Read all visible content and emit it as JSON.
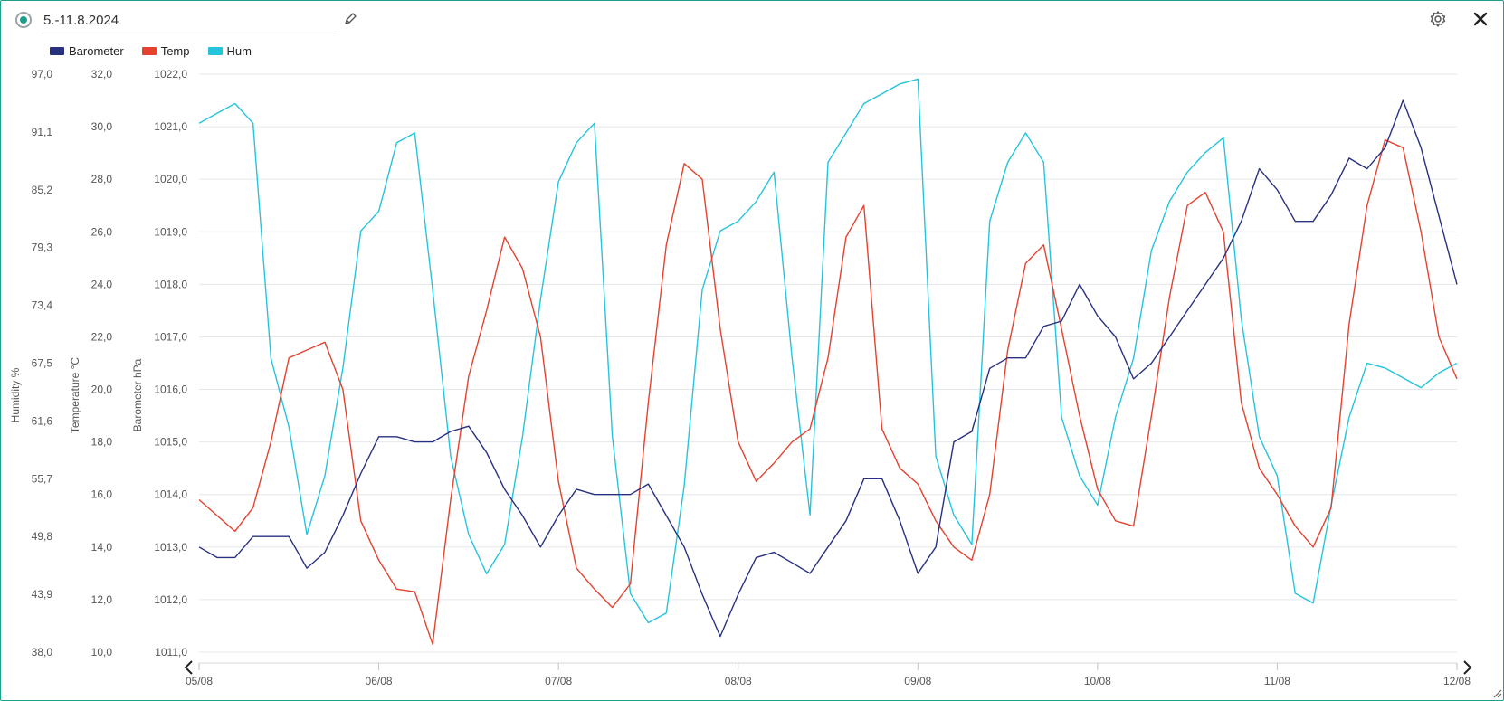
{
  "header": {
    "title": "5.-11.8.2024",
    "accent": "#1f9e8a"
  },
  "icons": {
    "status": "radio-selected-icon",
    "edit": "pencil-icon",
    "settings": "gear-icon",
    "close": "close-icon",
    "prev": "chevron-left-icon",
    "next": "chevron-right-icon",
    "resize": "resize-handle-icon"
  },
  "chart_data": {
    "type": "line",
    "title": "",
    "legend": "top-left",
    "grid": true,
    "x": {
      "labels": [
        "05/08",
        "06/08",
        "07/08",
        "08/08",
        "09/08",
        "10/08",
        "11/08",
        "12/08"
      ],
      "range": [
        "2024-08-05",
        "2024-08-12"
      ]
    },
    "axes": [
      {
        "id": "hum",
        "label": "Humidity %",
        "range": [
          38.0,
          97.0
        ],
        "ticks": [
          "97,0",
          "91,1",
          "85,2",
          "79,3",
          "73,4",
          "67,5",
          "61,6",
          "55,7",
          "49,8",
          "43,9",
          "38,0"
        ]
      },
      {
        "id": "temp",
        "label": "Temperature °C",
        "range": [
          10.0,
          32.0
        ],
        "ticks": [
          "32,0",
          "30,0",
          "28,0",
          "26,0",
          "24,0",
          "22,0",
          "20,0",
          "18,0",
          "16,0",
          "14,0",
          "12,0",
          "10,0"
        ]
      },
      {
        "id": "baro",
        "label": "Barometer hPa",
        "range": [
          1011.0,
          1022.0
        ],
        "ticks": [
          "1022,0",
          "1021,0",
          "1020,0",
          "1019,0",
          "1018,0",
          "1017,0",
          "1016,0",
          "1015,0",
          "1014,0",
          "1013,0",
          "1012,0",
          "1011,0"
        ]
      }
    ],
    "series": [
      {
        "name": "Barometer",
        "axis": "baro",
        "color": "#283180",
        "x": [
          0,
          0.1,
          0.2,
          0.3,
          0.4,
          0.5,
          0.6,
          0.7,
          0.8,
          0.9,
          1.0,
          1.1,
          1.2,
          1.3,
          1.4,
          1.5,
          1.6,
          1.7,
          1.8,
          1.9,
          2.0,
          2.1,
          2.2,
          2.3,
          2.4,
          2.5,
          2.6,
          2.7,
          2.8,
          2.9,
          3.0,
          3.1,
          3.2,
          3.3,
          3.4,
          3.5,
          3.6,
          3.7,
          3.8,
          3.9,
          4.0,
          4.1,
          4.2,
          4.3,
          4.4,
          4.5,
          4.6,
          4.7,
          4.8,
          4.9,
          5.0,
          5.1,
          5.2,
          5.3,
          5.4,
          5.5,
          5.6,
          5.7,
          5.8,
          5.9,
          6.0,
          6.1,
          6.2,
          6.3,
          6.4,
          6.5,
          6.6,
          6.7,
          6.8,
          6.9,
          7.0
        ],
        "values": [
          1013.0,
          1012.8,
          1012.8,
          1013.2,
          1013.2,
          1013.2,
          1012.6,
          1012.9,
          1013.6,
          1014.4,
          1015.1,
          1015.1,
          1015.0,
          1015.0,
          1015.2,
          1015.3,
          1014.8,
          1014.1,
          1013.6,
          1013.0,
          1013.6,
          1014.1,
          1014.0,
          1014.0,
          1014.0,
          1014.2,
          1013.6,
          1013.0,
          1012.1,
          1011.3,
          1012.1,
          1012.8,
          1012.9,
          1012.7,
          1012.5,
          1013.0,
          1013.5,
          1014.3,
          1014.3,
          1013.5,
          1012.5,
          1013.0,
          1015.0,
          1015.2,
          1016.4,
          1016.6,
          1016.6,
          1017.2,
          1017.3,
          1018.0,
          1017.4,
          1017.0,
          1016.2,
          1016.5,
          1017.0,
          1017.5,
          1018.0,
          1018.5,
          1019.2,
          1020.2,
          1019.8,
          1019.2,
          1019.2,
          1019.7,
          1020.4,
          1020.2,
          1020.6,
          1021.5,
          1020.6,
          1019.3,
          1018.0
        ]
      },
      {
        "name": "Temp",
        "axis": "temp",
        "color": "#e34230",
        "x": [
          0,
          0.1,
          0.2,
          0.3,
          0.4,
          0.5,
          0.6,
          0.7,
          0.8,
          0.9,
          1.0,
          1.1,
          1.2,
          1.3,
          1.4,
          1.5,
          1.6,
          1.7,
          1.8,
          1.9,
          2.0,
          2.1,
          2.2,
          2.3,
          2.4,
          2.5,
          2.6,
          2.7,
          2.8,
          2.9,
          3.0,
          3.1,
          3.2,
          3.3,
          3.4,
          3.5,
          3.6,
          3.7,
          3.8,
          3.9,
          4.0,
          4.1,
          4.2,
          4.3,
          4.4,
          4.5,
          4.6,
          4.7,
          4.8,
          4.9,
          5.0,
          5.1,
          5.2,
          5.3,
          5.4,
          5.5,
          5.6,
          5.7,
          5.8,
          5.9,
          6.0,
          6.1,
          6.2,
          6.3,
          6.4,
          6.5,
          6.6,
          6.7,
          6.8,
          6.9,
          7.0
        ],
        "values": [
          15.8,
          15.2,
          14.6,
          15.5,
          18.0,
          21.2,
          21.5,
          21.8,
          20.0,
          15.0,
          13.5,
          12.4,
          12.3,
          10.3,
          15.8,
          20.5,
          23.0,
          25.8,
          24.6,
          22.0,
          16.5,
          13.2,
          12.4,
          11.7,
          12.6,
          19.5,
          25.5,
          28.6,
          28.0,
          22.3,
          18.0,
          16.5,
          17.2,
          18.0,
          18.5,
          21.2,
          25.8,
          27.0,
          18.5,
          17.0,
          16.4,
          15.0,
          14.0,
          13.5,
          16.0,
          21.5,
          24.8,
          25.5,
          22.3,
          19.0,
          16.2,
          15.0,
          14.8,
          19.0,
          23.5,
          27.0,
          27.5,
          26.0,
          19.5,
          17.0,
          16.0,
          14.8,
          14.0,
          15.5,
          22.5,
          27.0,
          29.5,
          29.2,
          26.0,
          22.0,
          20.4
        ]
      },
      {
        "name": "Hum",
        "axis": "hum",
        "color": "#26c4dc",
        "x": [
          0,
          0.1,
          0.2,
          0.3,
          0.4,
          0.5,
          0.6,
          0.7,
          0.8,
          0.9,
          1.0,
          1.1,
          1.2,
          1.3,
          1.4,
          1.5,
          1.6,
          1.7,
          1.8,
          1.9,
          2.0,
          2.1,
          2.2,
          2.3,
          2.4,
          2.5,
          2.6,
          2.7,
          2.8,
          2.9,
          3.0,
          3.1,
          3.2,
          3.3,
          3.4,
          3.5,
          3.6,
          3.7,
          3.8,
          3.9,
          4.0,
          4.1,
          4.2,
          4.3,
          4.4,
          4.5,
          4.6,
          4.7,
          4.8,
          4.9,
          5.0,
          5.1,
          5.2,
          5.3,
          5.4,
          5.5,
          5.6,
          5.7,
          5.8,
          5.9,
          6.0,
          6.1,
          6.2,
          6.3,
          6.4,
          6.5,
          6.6,
          6.7,
          6.8,
          6.9,
          7.0
        ],
        "values": [
          92.0,
          93.0,
          94.0,
          92.0,
          68.0,
          61.0,
          50.0,
          56.0,
          67.0,
          81.0,
          83.0,
          90.0,
          91.0,
          75.0,
          58.0,
          50.0,
          46.0,
          49.0,
          60.0,
          74.0,
          86.0,
          90.0,
          92.0,
          60.0,
          44.0,
          41.0,
          42.0,
          55.0,
          75.0,
          81.0,
          82.0,
          84.0,
          87.0,
          68.0,
          52.0,
          88.0,
          91.0,
          94.0,
          95.0,
          96.0,
          96.5,
          58.0,
          52.0,
          49.0,
          82.0,
          88.0,
          91.0,
          88.0,
          62.0,
          56.0,
          53.0,
          62.0,
          68.0,
          79.0,
          84.0,
          87.0,
          89.0,
          90.5,
          72.0,
          60.0,
          56.0,
          44.0,
          43.0,
          53.0,
          62.0,
          67.5,
          67.0,
          66.0,
          65.0,
          66.5,
          67.5
        ]
      }
    ]
  }
}
